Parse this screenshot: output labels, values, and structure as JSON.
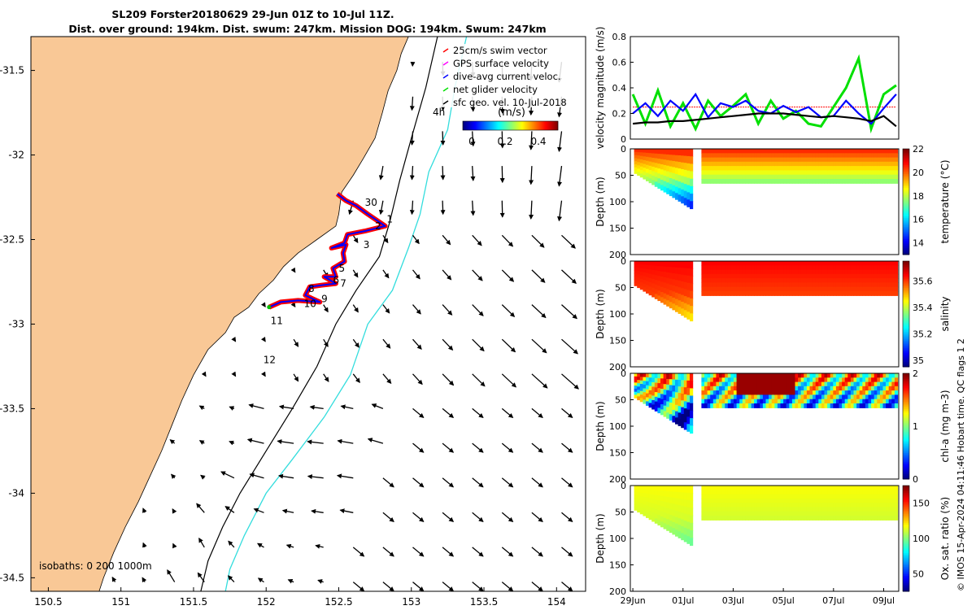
{
  "title": {
    "line1": "SL209 Forster20180629 29-Jun 01Z to 10-Jul 11Z.",
    "line2": "Dist. over ground: 194km. Dist. swum: 247km. Mission DOG: 194km. Swum: 247km"
  },
  "credit": "© IMOS 15-Apr-2024 04:11:46 Hobart time. QC flags 1  2",
  "colors": {
    "land": "#F9C896",
    "track": "#ff0000",
    "dive_avg": "#0000ff",
    "net_velocity": "#00e000",
    "isobath_200": "#000000",
    "isobath_1000": "#33dddd",
    "velocity_black": "#000000"
  },
  "map": {
    "xlim": [
      150.38,
      154.2
    ],
    "ylim": [
      -34.58,
      -31.3
    ],
    "xticks": [
      "150.5",
      "151",
      "151.5",
      "152",
      "152.5",
      "153",
      "153.5",
      "154"
    ],
    "yticks": [
      "-31.5",
      "-32",
      "-32.5",
      "-33",
      "-33.5",
      "-34",
      "-34.5"
    ],
    "isobath_label": "isobaths: 0   200  1000m",
    "time_label": "4h",
    "legend": {
      "items": [
        {
          "label": "25cm/s swim vector",
          "color": "#ff0000"
        },
        {
          "label": "GPS surface velocity",
          "color": "#ff00ff"
        },
        {
          "label": "dive-avg current veloc.",
          "color": "#0000ff"
        },
        {
          "label": "net glider velocity",
          "color": "#00e000"
        },
        {
          "label": "sfc geo. vel. 10-Jul-2018",
          "color": "#000000"
        }
      ]
    },
    "colorbar": {
      "label": "(m/s)",
      "ticks": [
        "0",
        "0.2",
        "0.4"
      ]
    },
    "day_labels": [
      {
        "text": "30",
        "lon": 152.68,
        "lat": -32.3
      },
      {
        "text": "1",
        "lon": 152.83,
        "lat": -32.4
      },
      {
        "text": "2",
        "lon": 152.75,
        "lat": -32.44
      },
      {
        "text": "3",
        "lon": 152.67,
        "lat": -32.55
      },
      {
        "text": "5",
        "lon": 152.5,
        "lat": -32.69
      },
      {
        "text": "6",
        "lon": 152.46,
        "lat": -32.76
      },
      {
        "text": "7",
        "lon": 152.51,
        "lat": -32.78
      },
      {
        "text": "8",
        "lon": 152.29,
        "lat": -32.81
      },
      {
        "text": "9",
        "lon": 152.38,
        "lat": -32.87
      },
      {
        "text": "10",
        "lon": 152.26,
        "lat": -32.9
      },
      {
        "text": "11",
        "lon": 152.03,
        "lat": -33.0
      },
      {
        "text": "12",
        "lon": 151.98,
        "lat": -33.23
      }
    ],
    "track": [
      [
        152.49,
        -32.23
      ],
      [
        152.55,
        -32.27
      ],
      [
        152.62,
        -32.3
      ],
      [
        152.7,
        -32.35
      ],
      [
        152.82,
        -32.42
      ],
      [
        152.68,
        -32.45
      ],
      [
        152.56,
        -32.47
      ],
      [
        152.54,
        -32.52
      ],
      [
        152.45,
        -32.55
      ],
      [
        152.55,
        -32.53
      ],
      [
        152.53,
        -32.58
      ],
      [
        152.54,
        -32.63
      ],
      [
        152.46,
        -32.67
      ],
      [
        152.48,
        -32.72
      ],
      [
        152.4,
        -32.72
      ],
      [
        152.48,
        -32.76
      ],
      [
        152.38,
        -32.77
      ],
      [
        152.3,
        -32.78
      ],
      [
        152.27,
        -32.83
      ],
      [
        152.32,
        -32.85
      ],
      [
        152.37,
        -32.87
      ],
      [
        152.22,
        -32.86
      ],
      [
        152.1,
        -32.87
      ],
      [
        152.02,
        -32.9
      ]
    ]
  },
  "chart_data": [
    {
      "type": "line",
      "ylabel": "velocity magnitude (m/s)",
      "ylim": [
        0,
        0.8
      ],
      "yticks": [
        "0",
        "0.2",
        "0.4",
        "0.6",
        "0.8"
      ],
      "x_days": [
        0,
        0.5,
        1,
        1.5,
        2,
        2.5,
        3,
        3.5,
        4,
        4.5,
        5,
        5.5,
        6,
        6.5,
        7,
        7.5,
        8,
        8.5,
        9,
        9.5,
        10,
        10.5
      ],
      "series": [
        {
          "color": "#ff0000",
          "values": [
            0.25,
            0.25,
            0.25,
            0.25,
            0.25,
            0.25,
            0.25,
            0.25,
            0.25,
            0.25,
            0.25,
            0.25,
            0.25,
            0.25,
            0.25,
            0.25,
            0.25,
            0.25,
            0.25,
            0.25,
            0.25,
            0.25
          ]
        },
        {
          "color": "#00e000",
          "values": [
            0.35,
            0.12,
            0.38,
            0.1,
            0.28,
            0.08,
            0.3,
            0.18,
            0.26,
            0.35,
            0.12,
            0.3,
            0.16,
            0.22,
            0.12,
            0.1,
            0.25,
            0.4,
            0.63,
            0.08,
            0.35,
            0.42
          ]
        },
        {
          "color": "#0000ff",
          "values": [
            0.2,
            0.28,
            0.18,
            0.3,
            0.22,
            0.35,
            0.17,
            0.28,
            0.25,
            0.3,
            0.22,
            0.2,
            0.26,
            0.21,
            0.25,
            0.17,
            0.18,
            0.3,
            0.2,
            0.12,
            0.24,
            0.35
          ]
        },
        {
          "color": "#000000",
          "values": [
            0.12,
            0.13,
            0.13,
            0.14,
            0.14,
            0.15,
            0.16,
            0.17,
            0.18,
            0.19,
            0.2,
            0.2,
            0.2,
            0.19,
            0.18,
            0.17,
            0.18,
            0.17,
            0.16,
            0.14,
            0.18,
            0.1
          ]
        }
      ]
    },
    {
      "type": "heatmap",
      "ylabel": "Depth (m)",
      "clabel": "temperature (°C)",
      "ylim": [
        0,
        200
      ],
      "yticks": [
        "0",
        "50",
        "100",
        "150",
        "200"
      ],
      "cticks": [
        "14",
        "16",
        "18",
        "20",
        "22"
      ],
      "crange": [
        13,
        22
      ],
      "surface": 20.5,
      "deep": 17.5,
      "deepest": 14
    },
    {
      "type": "heatmap",
      "ylabel": "Depth (m)",
      "clabel": "salinity",
      "ylim": [
        0,
        200
      ],
      "yticks": [
        "0",
        "50",
        "100",
        "150",
        "200"
      ],
      "cticks": [
        "35",
        "35.2",
        "35.4",
        "35.6"
      ],
      "crange": [
        34.95,
        35.75
      ],
      "surface": 35.65,
      "deep": 35.6,
      "deepest": 35.45
    },
    {
      "type": "heatmap",
      "ylabel": "Depth (m)",
      "clabel": "chl-a (mg m-3)",
      "ylim": [
        0,
        200
      ],
      "yticks": [
        "0",
        "50",
        "100",
        "150",
        "200"
      ],
      "cticks": [
        "0",
        "1",
        "2"
      ],
      "crange": [
        0,
        2
      ],
      "surface": 1.3,
      "deep": 0.7,
      "deepest": 0.1
    },
    {
      "type": "heatmap",
      "ylabel": "Depth (m)",
      "clabel": "Ox. sat. ratio (%)",
      "ylim": [
        0,
        200
      ],
      "yticks": [
        "0",
        "50",
        "100",
        "150",
        "200"
      ],
      "cticks": [
        "50",
        "100",
        "150"
      ],
      "crange": [
        25,
        175
      ],
      "surface": 118,
      "deep": 112,
      "deepest": 95
    }
  ],
  "time_axis": {
    "ticks": [
      "29Jun",
      "01Jul",
      "03Jul",
      "05Jul",
      "07Jul",
      "09Jul"
    ],
    "tick_days": [
      0,
      2,
      4,
      6,
      8,
      10
    ],
    "range_days": [
      -0.1,
      10.6
    ]
  }
}
